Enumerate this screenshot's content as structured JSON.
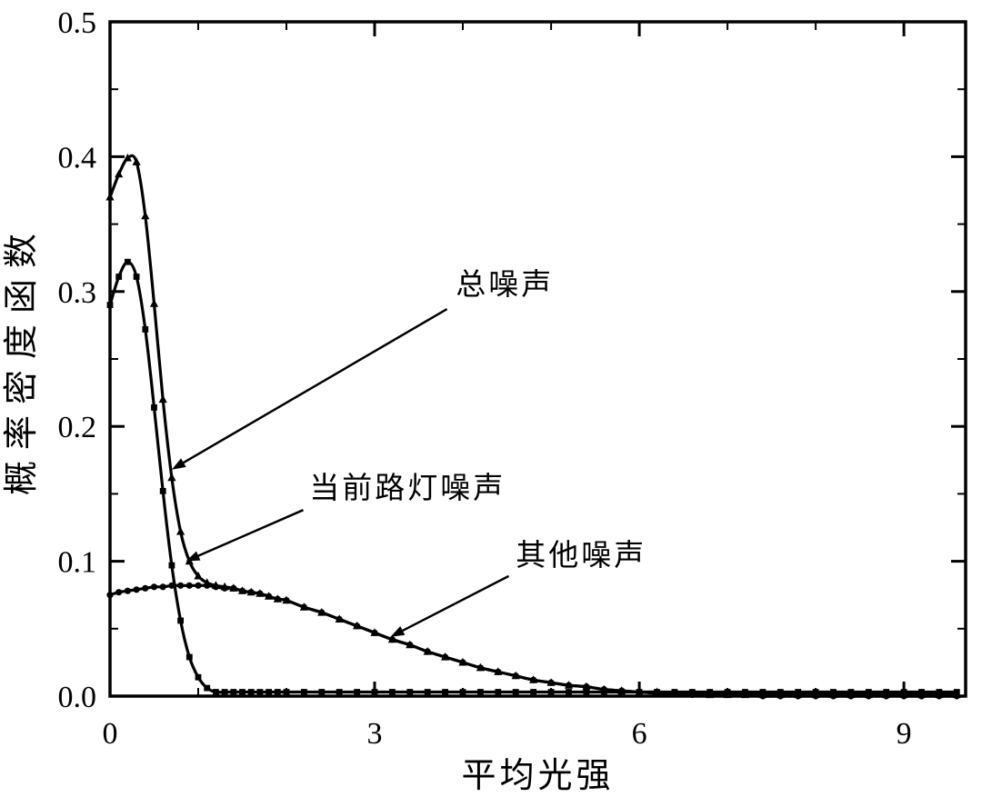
{
  "chart_data": {
    "type": "line",
    "title": "",
    "xlabel": "平均光强",
    "ylabel": "概率密度函数",
    "xlim": [
      0,
      9.7
    ],
    "ylim": [
      0,
      0.5
    ],
    "grid": false,
    "legend_position": "none",
    "line_color": "#000000",
    "x_ticks": {
      "major": [
        0,
        3,
        6,
        9
      ],
      "labels": [
        "0",
        "3",
        "6",
        "9"
      ],
      "minor": [
        1,
        2,
        4,
        5,
        7,
        8
      ]
    },
    "y_ticks": {
      "major": [
        0,
        0.1,
        0.2,
        0.3,
        0.4,
        0.5
      ],
      "labels": [
        "0.0",
        "0.1",
        "0.2",
        "0.3",
        "0.4",
        "0.5"
      ],
      "minor": [
        0.05,
        0.15,
        0.25,
        0.35,
        0.45
      ]
    },
    "x": [
      0,
      0.1,
      0.2,
      0.3,
      0.4,
      0.5,
      0.6,
      0.7,
      0.8,
      0.9,
      1,
      1.1,
      1.2,
      1.3,
      1.4,
      1.5,
      1.6,
      1.7,
      1.8,
      1.9,
      2,
      2.2,
      2.4,
      2.6,
      2.8,
      3,
      3.2,
      3.4,
      3.6,
      3.8,
      4,
      4.2,
      4.4,
      4.6,
      4.8,
      5,
      5.2,
      5.4,
      5.6,
      5.8,
      6,
      6.2,
      6.4,
      6.6,
      6.8,
      7,
      7.2,
      7.4,
      7.6,
      7.8,
      8,
      8.2,
      8.4,
      8.6,
      8.8,
      9,
      9.2,
      9.4,
      9.6
    ],
    "series": [
      {
        "id": "total-noise",
        "name": "总噪声",
        "marker": "triangle",
        "color": "#000000",
        "peak": {
          "x": 0.2,
          "y": 0.4
        },
        "y": [
          0.37,
          0.387,
          0.399,
          0.396,
          0.356,
          0.291,
          0.22,
          0.162,
          0.122,
          0.1,
          0.089,
          0.084,
          0.082,
          0.081,
          0.08,
          0.078,
          0.077,
          0.076,
          0.074,
          0.072,
          0.071,
          0.066,
          0.062,
          0.057,
          0.052,
          0.047,
          0.042,
          0.038,
          0.033,
          0.029,
          0.025,
          0.021,
          0.018,
          0.015,
          0.012,
          0.01,
          0.008,
          0.007,
          0.005,
          0.004,
          0.003,
          0.003,
          0.002,
          0.002,
          0.001,
          0.001,
          0.001,
          0.001,
          0.001,
          0.001,
          0.001,
          0.001,
          0.001,
          0.001,
          0.001,
          0.001,
          0.001,
          0.001,
          0.001
        ]
      },
      {
        "id": "streetlight-noise",
        "name": "当前路灯噪声",
        "marker": "square",
        "color": "#000000",
        "peak": {
          "x": 0.2,
          "y": 0.322
        },
        "y": [
          0.29,
          0.311,
          0.322,
          0.311,
          0.272,
          0.214,
          0.152,
          0.097,
          0.056,
          0.029,
          0.014,
          0.006,
          0.003,
          0.003,
          0.003,
          0.003,
          0.003,
          0.003,
          0.003,
          0.003,
          0.003,
          0.003,
          0.003,
          0.003,
          0.003,
          0.003,
          0.003,
          0.003,
          0.003,
          0.003,
          0.003,
          0.003,
          0.003,
          0.003,
          0.003,
          0.003,
          0.003,
          0.003,
          0.003,
          0.003,
          0.003,
          0.003,
          0.003,
          0.003,
          0.003,
          0.003,
          0.003,
          0.003,
          0.003,
          0.003,
          0.003,
          0.003,
          0.003,
          0.003,
          0.003,
          0.003,
          0.003,
          0.003,
          0.003
        ]
      },
      {
        "id": "other-noise",
        "name": "其他噪声",
        "marker": "circle",
        "color": "#000000",
        "peak": {
          "x": 0.9,
          "y": 0.082
        },
        "y": [
          0.075,
          0.077,
          0.078,
          0.079,
          0.08,
          0.081,
          0.081,
          0.082,
          0.082,
          0.082,
          0.082,
          0.082,
          0.081,
          0.08,
          0.08,
          0.078,
          0.077,
          0.076,
          0.074,
          0.072,
          0.071,
          0.066,
          0.062,
          0.057,
          0.052,
          0.047,
          0.042,
          0.038,
          0.033,
          0.029,
          0.025,
          0.021,
          0.018,
          0.015,
          0.012,
          0.01,
          0.008,
          0.007,
          0.005,
          0.004,
          0.003,
          0.002,
          0.002,
          0.001,
          0.001,
          0.001,
          0.001,
          0,
          0,
          0,
          0,
          0,
          0,
          0,
          0,
          0,
          0,
          0,
          0
        ]
      }
    ],
    "annotations": [
      {
        "id": "total-noise",
        "text": "总噪声",
        "text_x": 3.92,
        "text_y": 0.298,
        "arrow_from": [
          3.82,
          0.287
        ],
        "arrow_to": [
          0.7,
          0.168
        ]
      },
      {
        "id": "streetlight-noise",
        "text": "当前路灯噪声",
        "text_x": 2.26,
        "text_y": 0.147,
        "arrow_from": [
          2.19,
          0.138
        ],
        "arrow_to": [
          0.86,
          0.1
        ]
      },
      {
        "id": "other-noise",
        "text": "其他噪声",
        "text_x": 4.6,
        "text_y": 0.097,
        "arrow_from": [
          4.52,
          0.089
        ],
        "arrow_to": [
          3.18,
          0.044
        ]
      }
    ]
  }
}
